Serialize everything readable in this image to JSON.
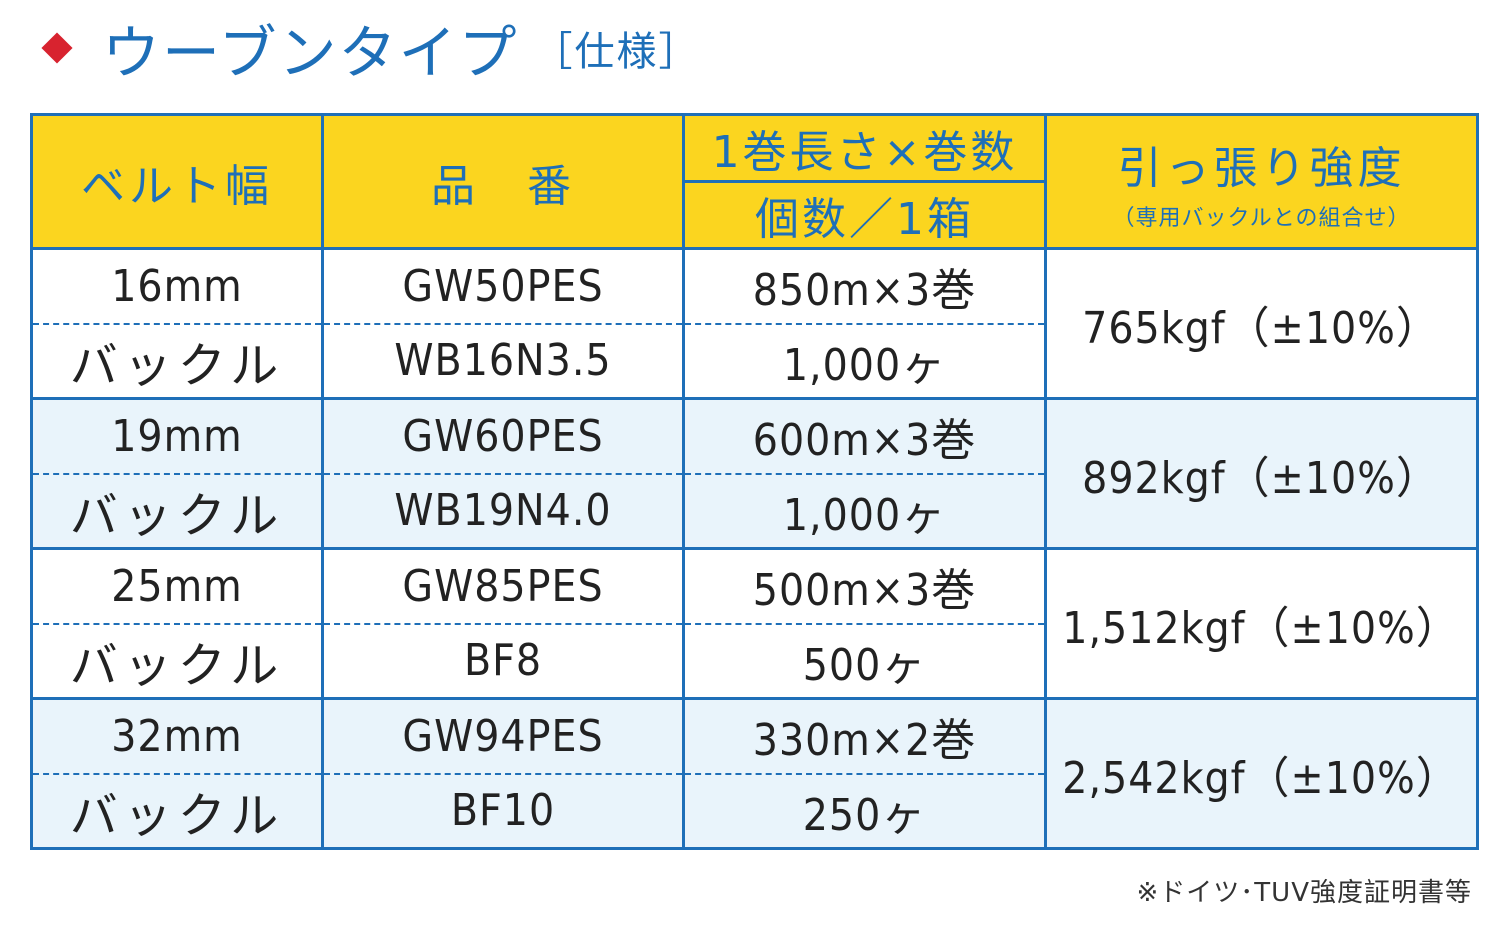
{
  "heading": {
    "title": "ウーブンタイプ",
    "subtitle": "［仕様］"
  },
  "table": {
    "headers": {
      "belt_width": "ベルト幅",
      "part_number": "品　番",
      "roll_length": "1巻長さ×巻数",
      "units_per_box": "個数／1箱",
      "strength": "引っ張り強度",
      "strength_note": "（専用バックルとの組合せ）"
    },
    "rows": [
      {
        "belt_width": "16mm",
        "belt_part": "GW50PES",
        "roll": "850m×3巻",
        "buckle_label": "バックル",
        "buckle_part": "WB16N3.5",
        "buckle_qty": "1,000ヶ",
        "strength": "765kgf（±10%）"
      },
      {
        "belt_width": "19mm",
        "belt_part": "GW60PES",
        "roll": "600m×3巻",
        "buckle_label": "バックル",
        "buckle_part": "WB19N4.0",
        "buckle_qty": "1,000ヶ",
        "strength": "892kgf（±10%）"
      },
      {
        "belt_width": "25mm",
        "belt_part": "GW85PES",
        "roll": "500m×3巻",
        "buckle_label": "バックル",
        "buckle_part": "BF8",
        "buckle_qty": "500ヶ",
        "strength": "1,512kgf（±10%）"
      },
      {
        "belt_width": "32mm",
        "belt_part": "GW94PES",
        "roll": "330m×2巻",
        "buckle_label": "バックル",
        "buckle_part": "BF10",
        "buckle_qty": "250ヶ",
        "strength": "2,542kgf（±10%）"
      }
    ]
  },
  "footnote": "※ドイツ･TUV強度証明書等",
  "colors": {
    "accent_blue": "#1e6fb8",
    "header_yellow": "#fbd51f",
    "row_tint": "#e9f4fb",
    "marker_red": "#d8232f"
  }
}
